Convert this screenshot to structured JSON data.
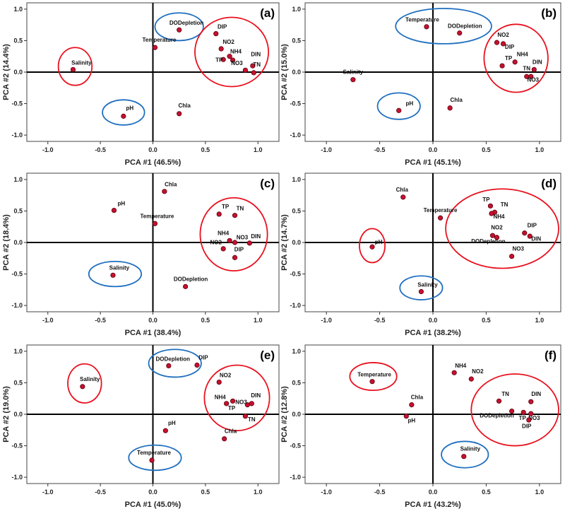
{
  "colors": {
    "point_fill": "#c8102e",
    "point_stroke": "#5a0010",
    "ring_red": "#e8121f",
    "ring_blue": "#1f6fc0",
    "axis": "#000000",
    "tick": "#333333"
  },
  "chart_data": [
    {
      "type": "scatter",
      "panel_label": "(a)",
      "xlabel": "PCA #1 (46.5%)",
      "ylabel": "PCA #2 (14.4%)",
      "xlim": [
        -1.2,
        1.2
      ],
      "ylim": [
        -1.1,
        1.1
      ],
      "xticks": [
        -1.0,
        -0.5,
        0.0,
        0.5,
        1.0
      ],
      "xtick_labels": [
        "-1.0",
        "-0.5",
        "0.0",
        "0.5",
        "1.0"
      ],
      "yticks": [
        -1.0,
        -0.5,
        0.0,
        0.5,
        1.0
      ],
      "ytick_labels": [
        "-1.0",
        "-0.5",
        "0.0",
        "0.5",
        "1.0"
      ],
      "points": [
        {
          "name": "Salinity",
          "x": -0.76,
          "y": 0.04,
          "lx": -0.68,
          "ly": 0.12
        },
        {
          "name": "pH",
          "x": -0.28,
          "y": -0.7,
          "lx": -0.22,
          "ly": -0.6
        },
        {
          "name": "DODepletion",
          "x": 0.25,
          "y": 0.67,
          "lx": 0.32,
          "ly": 0.75
        },
        {
          "name": "Temperature",
          "x": 0.02,
          "y": 0.39,
          "lx": 0.06,
          "ly": 0.48
        },
        {
          "name": "Chla",
          "x": 0.25,
          "y": -0.66,
          "lx": 0.3,
          "ly": -0.56
        },
        {
          "name": "DIP",
          "x": 0.6,
          "y": 0.61,
          "lx": 0.66,
          "ly": 0.69
        },
        {
          "name": "NO2",
          "x": 0.65,
          "y": 0.37,
          "lx": 0.72,
          "ly": 0.45
        },
        {
          "name": "NH4",
          "x": 0.73,
          "y": 0.25,
          "lx": 0.79,
          "ly": 0.3
        },
        {
          "name": "TP",
          "x": 0.67,
          "y": 0.2,
          "lx": 0.63,
          "ly": 0.16
        },
        {
          "name": "NO3",
          "x": 0.76,
          "y": 0.19,
          "lx": 0.8,
          "ly": 0.11
        },
        {
          "name": "DIN",
          "x": 0.95,
          "y": 0.1,
          "lx": 0.98,
          "ly": 0.25
        },
        {
          "name": "TN",
          "x": 0.88,
          "y": 0.03,
          "lx": 0.99,
          "ly": 0.09
        },
        {
          "name": "",
          "x": 0.96,
          "y": -0.01,
          "lx": 0,
          "ly": 0
        }
      ],
      "groups": [
        {
          "color": "red",
          "cx": -0.74,
          "cy": 0.09,
          "rx": 0.16,
          "ry": 0.3
        },
        {
          "color": "blue",
          "cx": -0.28,
          "cy": -0.64,
          "rx": 0.2,
          "ry": 0.2
        },
        {
          "color": "blue",
          "cx": 0.25,
          "cy": 0.72,
          "rx": 0.23,
          "ry": 0.22
        },
        {
          "color": "red",
          "cx": 0.75,
          "cy": 0.32,
          "rx": 0.35,
          "ry": 0.55
        }
      ]
    },
    {
      "type": "scatter",
      "panel_label": "(b)",
      "xlabel": "PCA #1 (45.1%)",
      "ylabel": "PCA #2 (15.0%)",
      "xlim": [
        -1.2,
        1.2
      ],
      "ylim": [
        -1.1,
        1.1
      ],
      "xticks": [
        -1.0,
        -0.5,
        0.0,
        0.5,
        1.0
      ],
      "xtick_labels": [
        "-1.0",
        "-0.5",
        "0.0",
        "0.5",
        "1.0"
      ],
      "yticks": [
        -1.0,
        -0.5,
        0.0,
        0.5,
        1.0
      ],
      "ytick_labels": [
        "-1.0",
        "-0.5",
        "0.0",
        "0.5",
        "1.0"
      ],
      "points": [
        {
          "name": "Salinity",
          "x": -0.75,
          "y": -0.12,
          "lx": -0.75,
          "ly": -0.03
        },
        {
          "name": "pH",
          "x": -0.32,
          "y": -0.61,
          "lx": -0.22,
          "ly": -0.53
        },
        {
          "name": "Temperature",
          "x": -0.06,
          "y": 0.72,
          "lx": -0.1,
          "ly": 0.8
        },
        {
          "name": "DODepletion",
          "x": 0.25,
          "y": 0.62,
          "lx": 0.3,
          "ly": 0.7
        },
        {
          "name": "Chla",
          "x": 0.16,
          "y": -0.57,
          "lx": 0.22,
          "ly": -0.47
        },
        {
          "name": "NO2",
          "x": 0.6,
          "y": 0.47,
          "lx": 0.66,
          "ly": 0.56
        },
        {
          "name": "DIP",
          "x": 0.66,
          "y": 0.45,
          "lx": 0.72,
          "ly": 0.37
        },
        {
          "name": "NH4",
          "x": 0.77,
          "y": 0.16,
          "lx": 0.84,
          "ly": 0.25
        },
        {
          "name": "TP",
          "x": 0.65,
          "y": 0.1,
          "lx": 0.71,
          "ly": 0.19
        },
        {
          "name": "DIN",
          "x": 0.95,
          "y": 0.04,
          "lx": 0.98,
          "ly": 0.13
        },
        {
          "name": "TN",
          "x": 0.88,
          "y": -0.07,
          "lx": 0.88,
          "ly": 0.03
        },
        {
          "name": "NO3",
          "x": 0.92,
          "y": -0.07,
          "lx": 0.94,
          "ly": -0.15
        }
      ],
      "groups": [
        {
          "color": "blue",
          "cx": -0.32,
          "cy": -0.54,
          "rx": 0.2,
          "ry": 0.21
        },
        {
          "color": "blue",
          "cx": 0.1,
          "cy": 0.73,
          "rx": 0.45,
          "ry": 0.28
        },
        {
          "color": "red",
          "cx": 0.78,
          "cy": 0.22,
          "rx": 0.3,
          "ry": 0.54
        }
      ]
    },
    {
      "type": "scatter",
      "panel_label": "(c)",
      "xlabel": "PCA #1 (38.4%)",
      "ylabel": "PCA #2 (18.4%)",
      "xlim": [
        -1.2,
        1.2
      ],
      "ylim": [
        -1.1,
        1.1
      ],
      "xticks": [
        -1.0,
        -0.5,
        0.0,
        0.5,
        1.0
      ],
      "xtick_labels": [
        "-1.0",
        "-0.5",
        "0.0",
        "0.5",
        "1.0"
      ],
      "yticks": [
        -1.0,
        -0.5,
        0.0,
        0.5,
        1.0
      ],
      "ytick_labels": [
        "-1.0",
        "-0.5",
        "0.0",
        "0.5",
        "1.0"
      ],
      "points": [
        {
          "name": "pH",
          "x": -0.37,
          "y": 0.51,
          "lx": -0.3,
          "ly": 0.59
        },
        {
          "name": "Salinity",
          "x": -0.38,
          "y": -0.52,
          "lx": -0.32,
          "ly": -0.43
        },
        {
          "name": "Chla",
          "x": 0.11,
          "y": 0.81,
          "lx": 0.17,
          "ly": 0.89
        },
        {
          "name": "Temperature",
          "x": 0.02,
          "y": 0.3,
          "lx": 0.04,
          "ly": 0.39
        },
        {
          "name": "DODepletion",
          "x": 0.31,
          "y": -0.7,
          "lx": 0.36,
          "ly": -0.61
        },
        {
          "name": "TP",
          "x": 0.63,
          "y": 0.45,
          "lx": 0.69,
          "ly": 0.54
        },
        {
          "name": "TN",
          "x": 0.78,
          "y": 0.43,
          "lx": 0.83,
          "ly": 0.51
        },
        {
          "name": "NH4",
          "x": 0.73,
          "y": 0.03,
          "lx": 0.67,
          "ly": 0.12
        },
        {
          "name": "NO3",
          "x": 0.78,
          "y": 0.0,
          "lx": 0.85,
          "ly": 0.05
        },
        {
          "name": "DIN",
          "x": 0.92,
          "y": -0.01,
          "lx": 0.98,
          "ly": 0.07
        },
        {
          "name": "NO2",
          "x": 0.67,
          "y": -0.1,
          "lx": 0.6,
          "ly": -0.03
        },
        {
          "name": "DIP",
          "x": 0.78,
          "y": -0.24,
          "lx": 0.82,
          "ly": -0.14
        }
      ],
      "groups": [
        {
          "color": "blue",
          "cx": -0.36,
          "cy": -0.5,
          "rx": 0.25,
          "ry": 0.2
        },
        {
          "color": "red",
          "cx": 0.77,
          "cy": 0.13,
          "rx": 0.32,
          "ry": 0.58
        }
      ]
    },
    {
      "type": "scatter",
      "panel_label": "(d)",
      "xlabel": "PCA #1 (38.2%)",
      "ylabel": "PCA #2 (14.7%)",
      "xlim": [
        -1.2,
        1.2
      ],
      "ylim": [
        -1.1,
        1.1
      ],
      "xticks": [
        -1.0,
        -0.5,
        0.0,
        0.5,
        1.0
      ],
      "xtick_labels": [
        "-1.0",
        "-0.5",
        "0.0",
        "0.5",
        "1.0"
      ],
      "yticks": [
        -1.0,
        -0.5,
        0.0,
        0.5,
        1.0
      ],
      "ytick_labels": [
        "-1.0",
        "-0.5",
        "0.0",
        "0.5",
        "1.0"
      ],
      "points": [
        {
          "name": "Chla",
          "x": -0.28,
          "y": 0.72,
          "lx": -0.29,
          "ly": 0.81
        },
        {
          "name": "pH",
          "x": -0.57,
          "y": -0.07,
          "lx": -0.51,
          "ly": -0.02
        },
        {
          "name": "Salinity",
          "x": -0.11,
          "y": -0.78,
          "lx": -0.05,
          "ly": -0.7
        },
        {
          "name": "Temperature",
          "x": 0.07,
          "y": 0.39,
          "lx": 0.07,
          "ly": 0.48
        },
        {
          "name": "TP",
          "x": 0.54,
          "y": 0.58,
          "lx": 0.5,
          "ly": 0.65
        },
        {
          "name": "TN",
          "x": 0.58,
          "y": 0.48,
          "lx": 0.67,
          "ly": 0.57
        },
        {
          "name": "NH4",
          "x": 0.55,
          "y": 0.46,
          "lx": 0.62,
          "ly": 0.38
        },
        {
          "name": "NO2",
          "x": 0.56,
          "y": 0.11,
          "lx": 0.6,
          "ly": 0.21
        },
        {
          "name": "DODepletion",
          "x": 0.6,
          "y": 0.08,
          "lx": 0.52,
          "ly": -0.01
        },
        {
          "name": "DIP",
          "x": 0.86,
          "y": 0.15,
          "lx": 0.93,
          "ly": 0.24
        },
        {
          "name": "DIN",
          "x": 0.91,
          "y": 0.1,
          "lx": 0.97,
          "ly": 0.03
        },
        {
          "name": "NO3",
          "x": 0.74,
          "y": -0.22,
          "lx": 0.8,
          "ly": -0.13
        }
      ],
      "groups": [
        {
          "color": "red",
          "cx": -0.57,
          "cy": -0.05,
          "rx": 0.12,
          "ry": 0.27
        },
        {
          "color": "blue",
          "cx": -0.11,
          "cy": -0.72,
          "rx": 0.2,
          "ry": 0.19
        },
        {
          "color": "red",
          "cx": 0.65,
          "cy": 0.22,
          "rx": 0.53,
          "ry": 0.63
        }
      ]
    },
    {
      "type": "scatter",
      "panel_label": "(e)",
      "xlabel": "PCA #1 (45.0%)",
      "ylabel": "PCA #2 (19.0%)",
      "xlim": [
        -1.2,
        1.2
      ],
      "ylim": [
        -1.1,
        1.1
      ],
      "xticks": [
        -1.0,
        -0.5,
        0.0,
        0.5,
        1.0
      ],
      "xtick_labels": [
        "-1.0",
        "-0.5",
        "0.0",
        "0.5",
        "1.0"
      ],
      "yticks": [
        -1.0,
        -0.5,
        0.0,
        0.5,
        1.0
      ],
      "ytick_labels": [
        "-1.0",
        "-0.5",
        "0.0",
        "0.5",
        "1.0"
      ],
      "points": [
        {
          "name": "Salinity",
          "x": -0.67,
          "y": 0.44,
          "lx": -0.6,
          "ly": 0.53
        },
        {
          "name": "DODepletion",
          "x": 0.15,
          "y": 0.77,
          "lx": 0.19,
          "ly": 0.85
        },
        {
          "name": "DIP",
          "x": 0.42,
          "y": 0.78,
          "lx": 0.48,
          "ly": 0.87
        },
        {
          "name": "NO2",
          "x": 0.63,
          "y": 0.51,
          "lx": 0.69,
          "ly": 0.59
        },
        {
          "name": "NH4",
          "x": 0.7,
          "y": 0.17,
          "lx": 0.64,
          "ly": 0.24
        },
        {
          "name": "TP",
          "x": 0.76,
          "y": 0.21,
          "lx": 0.75,
          "ly": 0.07
        },
        {
          "name": "NO3",
          "x": 0.9,
          "y": 0.15,
          "lx": 0.84,
          "ly": 0.16
        },
        {
          "name": "DIN",
          "x": 0.94,
          "y": 0.17,
          "lx": 0.98,
          "ly": 0.27
        },
        {
          "name": "TN",
          "x": 0.88,
          "y": -0.03,
          "lx": 0.94,
          "ly": -0.11
        },
        {
          "name": "pH",
          "x": 0.12,
          "y": -0.26,
          "lx": 0.18,
          "ly": -0.17
        },
        {
          "name": "Chla",
          "x": 0.68,
          "y": -0.39,
          "lx": 0.74,
          "ly": -0.3
        },
        {
          "name": "Temperature",
          "x": -0.01,
          "y": -0.73,
          "lx": 0.01,
          "ly": -0.64
        }
      ],
      "groups": [
        {
          "color": "red",
          "cx": -0.65,
          "cy": 0.49,
          "rx": 0.16,
          "ry": 0.31
        },
        {
          "color": "blue",
          "cx": 0.21,
          "cy": 0.81,
          "rx": 0.25,
          "ry": 0.22
        },
        {
          "color": "blue",
          "cx": 0.02,
          "cy": -0.69,
          "rx": 0.25,
          "ry": 0.2
        },
        {
          "color": "red",
          "cx": 0.8,
          "cy": 0.26,
          "rx": 0.31,
          "ry": 0.52
        }
      ]
    },
    {
      "type": "scatter",
      "panel_label": "(f)",
      "xlabel": "PCA #1 (43.2%)",
      "ylabel": "PCA #2 (12.8%)",
      "xlim": [
        -1.2,
        1.2
      ],
      "ylim": [
        -1.1,
        1.1
      ],
      "xticks": [
        -1.0,
        -0.5,
        0.0,
        0.5,
        1.0
      ],
      "xtick_labels": [
        "-1.0",
        "-0.5",
        "0.0",
        "0.5",
        "1.0"
      ],
      "yticks": [
        -1.0,
        -0.5,
        0.0,
        0.5,
        1.0
      ],
      "ytick_labels": [
        "-1.0",
        "-0.5",
        "0.0",
        "0.5",
        "1.0"
      ],
      "points": [
        {
          "name": "Temperature",
          "x": -0.57,
          "y": 0.52,
          "lx": -0.55,
          "ly": 0.6
        },
        {
          "name": "Chla",
          "x": -0.2,
          "y": 0.15,
          "lx": -0.15,
          "ly": 0.24
        },
        {
          "name": "pH",
          "x": -0.25,
          "y": -0.03,
          "lx": -0.2,
          "ly": -0.13
        },
        {
          "name": "NH4",
          "x": 0.2,
          "y": 0.66,
          "lx": 0.26,
          "ly": 0.74
        },
        {
          "name": "NO2",
          "x": 0.36,
          "y": 0.56,
          "lx": 0.42,
          "ly": 0.65
        },
        {
          "name": "Salinity",
          "x": 0.29,
          "y": -0.67,
          "lx": 0.35,
          "ly": -0.58
        },
        {
          "name": "TN",
          "x": 0.62,
          "y": 0.21,
          "lx": 0.68,
          "ly": 0.29
        },
        {
          "name": "DODepletion",
          "x": 0.74,
          "y": 0.05,
          "lx": 0.6,
          "ly": -0.05
        },
        {
          "name": "TP",
          "x": 0.85,
          "y": 0.03,
          "lx": 0.84,
          "ly": -0.09
        },
        {
          "name": "NO3",
          "x": 0.92,
          "y": 0.01,
          "lx": 0.95,
          "ly": -0.09
        },
        {
          "name": "DIN",
          "x": 0.92,
          "y": 0.2,
          "lx": 0.97,
          "ly": 0.29
        },
        {
          "name": "DIP",
          "x": 0.9,
          "y": -0.09,
          "lx": 0.88,
          "ly": -0.22
        }
      ],
      "groups": [
        {
          "color": "red",
          "cx": -0.56,
          "cy": 0.6,
          "rx": 0.22,
          "ry": 0.22
        },
        {
          "color": "blue",
          "cx": 0.3,
          "cy": -0.64,
          "rx": 0.22,
          "ry": 0.21
        },
        {
          "color": "red",
          "cx": 0.77,
          "cy": 0.07,
          "rx": 0.41,
          "ry": 0.57
        }
      ]
    }
  ]
}
